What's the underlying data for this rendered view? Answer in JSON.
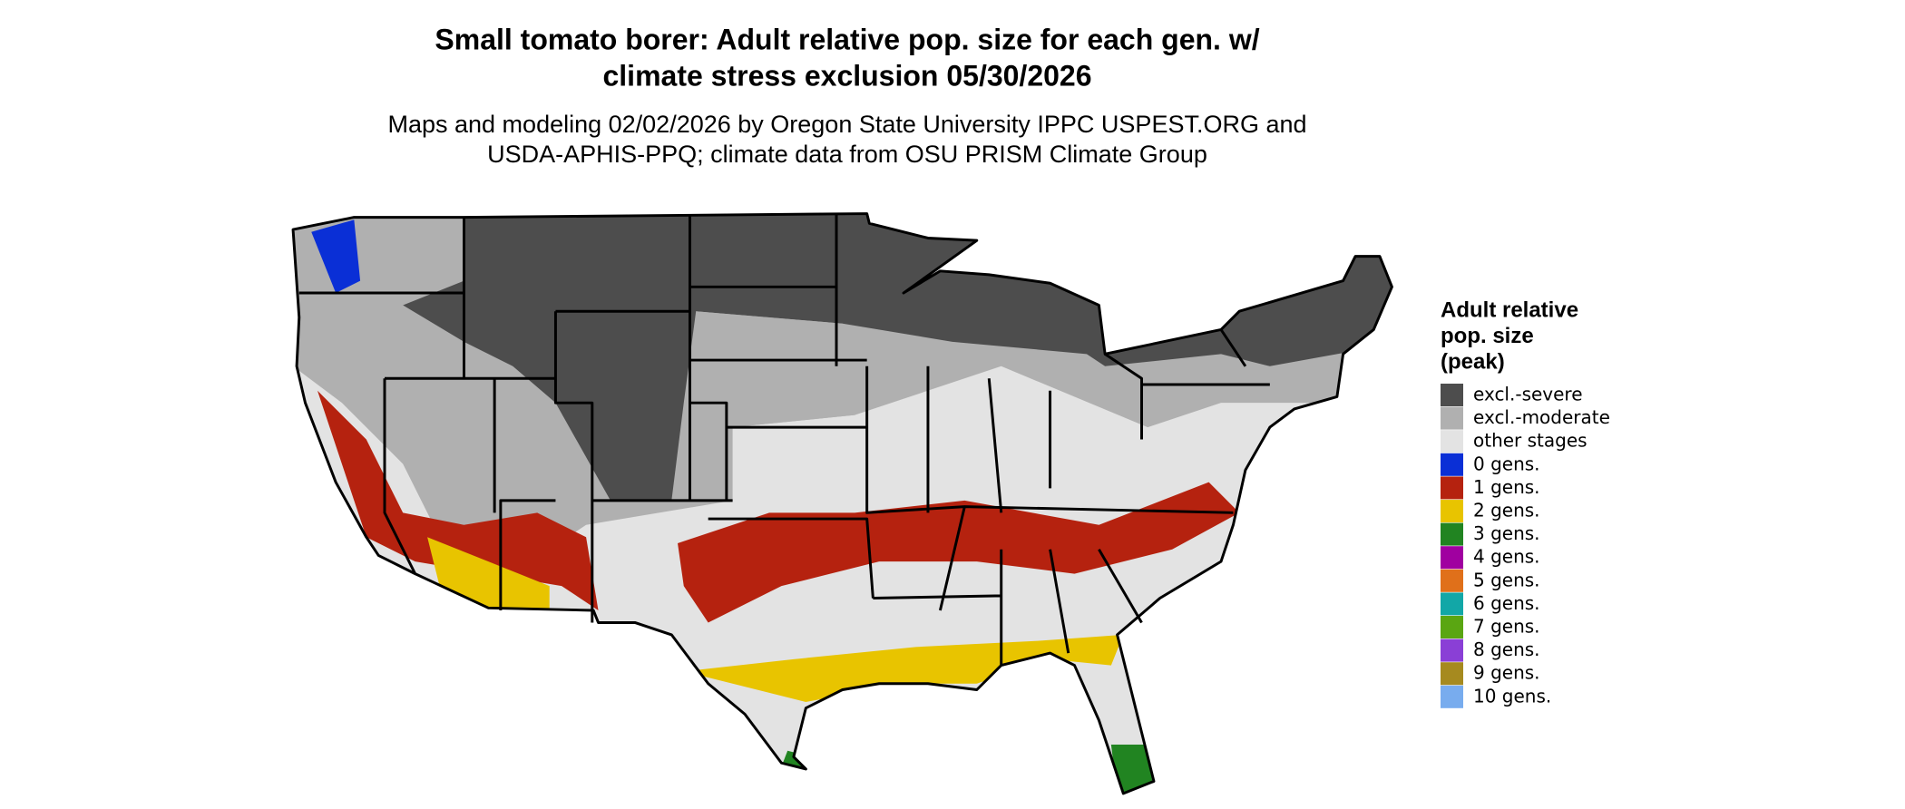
{
  "title": [
    "Small tomato borer: Adult relative pop. size for each gen. w/",
    "climate stress exclusion 05/30/2026"
  ],
  "subtitle": [
    "Maps and modeling 02/02/2026 by Oregon State University IPPC USPEST.ORG and",
    "USDA-APHIS-PPQ; climate data from OSU PRISM Climate Group"
  ],
  "legend": {
    "title": [
      "Adult relative",
      "pop. size",
      "(peak)"
    ],
    "items": [
      {
        "label": "excl.-severe",
        "color": "#4d4d4d"
      },
      {
        "label": "excl.-moderate",
        "color": "#b0b0b0"
      },
      {
        "label": "other stages",
        "color": "#e3e3e3"
      },
      {
        "label": "0 gens.",
        "color": "#0a2fd6"
      },
      {
        "label": "1 gens.",
        "color": "#b5220f"
      },
      {
        "label": "2 gens.",
        "color": "#e8c400"
      },
      {
        "label": "3 gens.",
        "color": "#218421"
      },
      {
        "label": "4 gens.",
        "color": "#a000a0"
      },
      {
        "label": "5 gens.",
        "color": "#e0701a"
      },
      {
        "label": "6 gens.",
        "color": "#12a7a7"
      },
      {
        "label": "7 gens.",
        "color": "#5aa612"
      },
      {
        "label": "8 gens.",
        "color": "#8a3fd6"
      },
      {
        "label": "9 gens.",
        "color": "#a68a1f"
      },
      {
        "label": "10 gens.",
        "color": "#78acee"
      }
    ]
  }
}
